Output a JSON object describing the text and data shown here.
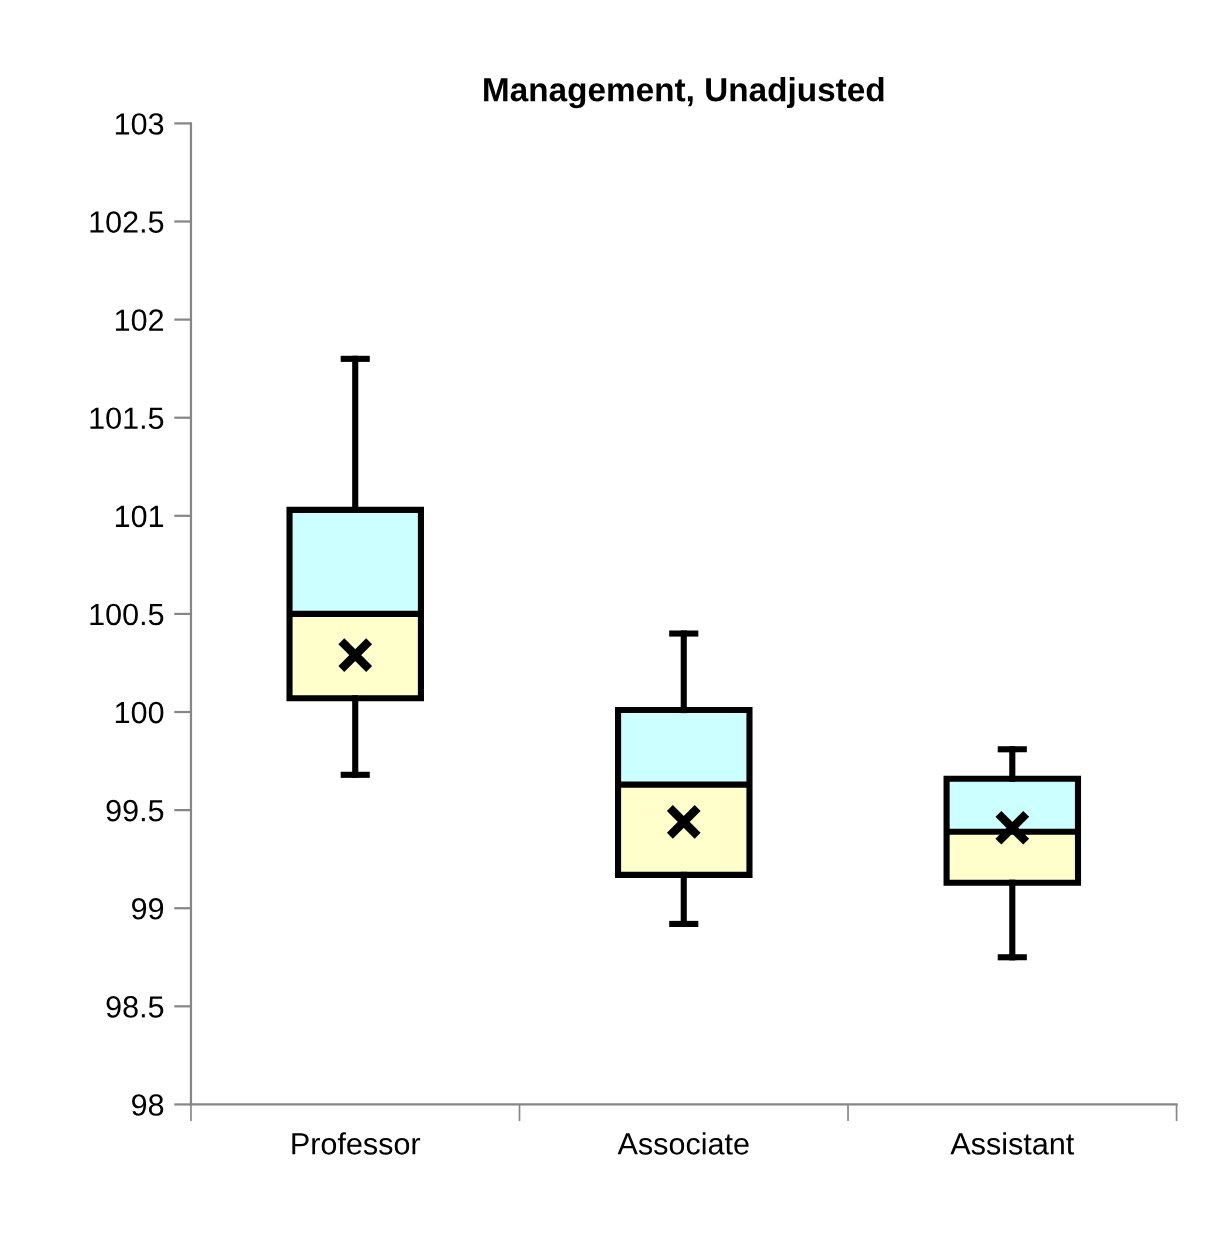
{
  "chart_data": {
    "type": "box",
    "title": "Management, Unadjusted",
    "categories": [
      "Professor",
      "Associate",
      "Assistant"
    ],
    "boxes": [
      {
        "low": 99.68,
        "q1": 100.07,
        "median": 100.5,
        "q3": 101.03,
        "high": 101.8,
        "mean": 100.29
      },
      {
        "low": 98.92,
        "q1": 99.17,
        "median": 99.63,
        "q3": 100.01,
        "high": 100.4,
        "mean": 99.44
      },
      {
        "low": 98.75,
        "q1": 99.13,
        "median": 99.39,
        "q3": 99.66,
        "high": 99.81,
        "mean": 99.41
      }
    ],
    "colors": [
      [
        "#ffffcc",
        "#ccffff"
      ],
      [
        "#ffffcc",
        "#ccffff"
      ],
      [
        "#ffffcc",
        "#ccffff"
      ]
    ],
    "ylim": [
      98,
      103
    ],
    "yticks": [
      98,
      98.5,
      99,
      99.5,
      100,
      100.5,
      101,
      101.5,
      102,
      102.5,
      103
    ],
    "grid": false,
    "legend": false,
    "marker": "cross"
  }
}
